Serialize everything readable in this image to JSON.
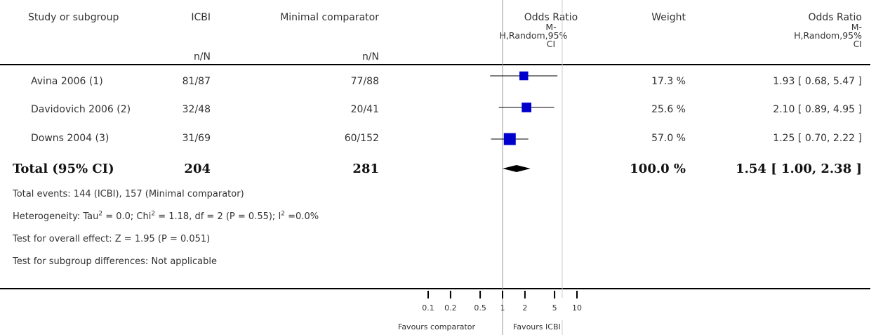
{
  "columns": {
    "study": "Study or subgroup",
    "icbi": "ICBI",
    "icbi_sub": "n/N",
    "comp": "Minimal comparator",
    "comp_sub": "n/N",
    "or_l1": "Odds Ratio",
    "or_l2": "M-",
    "or_l3": "H,Random,95%",
    "or_l4": "CI",
    "weight": "Weight",
    "or2_l1": "Odds Ratio",
    "or2_l2": "M-",
    "or2_l3": "H,Random,95%",
    "or2_l4": "CI"
  },
  "studies": [
    {
      "name": "Avina 2006 (1)",
      "icbi": "81/87",
      "comp": "77/88",
      "weight": "17.3 %",
      "ci_text": "1.93 [ 0.68, 5.47 ]"
    },
    {
      "name": "Davidovich 2006 (2)",
      "icbi": "32/48",
      "comp": "20/41",
      "weight": "25.6 %",
      "ci_text": "2.10 [ 0.89, 4.95 ]"
    },
    {
      "name": "Downs 2004 (3)",
      "icbi": "31/69",
      "comp": "60/152",
      "weight": "57.0 %",
      "ci_text": "1.25 [ 0.70, 2.22 ]"
    }
  ],
  "total": {
    "label": "Total (95% CI)",
    "icbi": "204",
    "comp": "281",
    "weight": "100.0 %",
    "ci_text": "1.54 [ 1.00, 2.38 ]"
  },
  "notes": {
    "events": "Total events: 144 (ICBI), 157 (Minimal comparator)",
    "het_a": "Heterogeneity: Tau",
    "het_b": " = 0.0; Chi",
    "het_c": " = 1.18, df = 2 (P = 0.55); I",
    "het_d": " =0.0%",
    "sup2": "2",
    "overall": "Test for overall effect: Z = 1.95 (P = 0.051)",
    "subgroup": "Test for subgroup differences: Not applicable"
  },
  "axis": {
    "ticks": [
      {
        "label": "0.1",
        "value": 0.1
      },
      {
        "label": "0.2",
        "value": 0.2
      },
      {
        "label": "0.5",
        "value": 0.5
      },
      {
        "label": "1",
        "value": 1
      },
      {
        "label": "2",
        "value": 2
      },
      {
        "label": "5",
        "value": 5
      },
      {
        "label": "10",
        "value": 10
      }
    ],
    "favours_left": "Favours comparator",
    "favours_right": "Favours ICBI"
  },
  "chart_data": {
    "type": "scatter",
    "scale": "log",
    "xlim": [
      0.1,
      10
    ],
    "null_line": 1,
    "series": [
      {
        "name": "Avina 2006 (1)",
        "or": 1.93,
        "lo": 0.68,
        "hi": 5.47,
        "weight": 17.3
      },
      {
        "name": "Davidovich 2006 (2)",
        "or": 2.1,
        "lo": 0.89,
        "hi": 4.95,
        "weight": 25.6
      },
      {
        "name": "Downs 2004 (3)",
        "or": 1.25,
        "lo": 0.7,
        "hi": 2.22,
        "weight": 57.0
      }
    ],
    "pooled": {
      "name": "Total (95% CI)",
      "or": 1.54,
      "lo": 1.0,
      "hi": 2.38
    },
    "colors": {
      "marker": "#0000cc",
      "pooled": "#000000",
      "ci": "#000000"
    }
  }
}
